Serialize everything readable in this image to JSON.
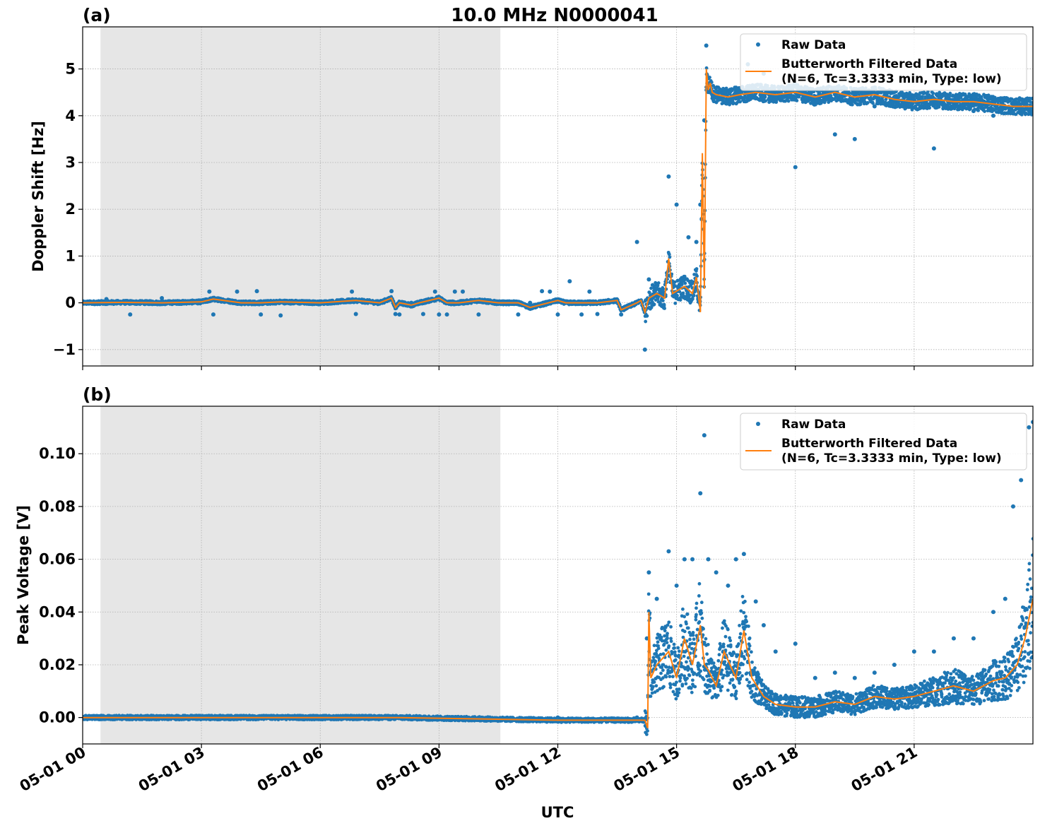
{
  "figure_title": "10.0 MHz N0000041",
  "xlabel": "UTC",
  "x_ticks": [
    "05-01 00",
    "05-01 03",
    "05-01 06",
    "05-01 09",
    "05-01 12",
    "05-01 15",
    "05-01 18",
    "05-01 21"
  ],
  "colors": {
    "raw": "#1f77b4",
    "filtered": "#ff7f0e",
    "night_shade": "#e6e6e6",
    "grid": "#b0b0b0"
  },
  "chart_data": [
    {
      "type": "scatter",
      "panel_label": "(a)",
      "ylabel": "Doppler Shift [Hz]",
      "x_unit": "hours UTC, 2024-05-01",
      "xlim": [
        0,
        24
      ],
      "ylim": [
        -1.35,
        5.9
      ],
      "y_ticks": [
        -1,
        0,
        1,
        2,
        3,
        4,
        5
      ],
      "y_tick_labels": [
        "−1",
        "0",
        "1",
        "2",
        "3",
        "4",
        "5"
      ],
      "shaded_interval": [
        0.45,
        10.55
      ],
      "grid": true,
      "legend_position": "upper right",
      "legend": [
        "Raw Data",
        "Butterworth Filtered Data",
        "(N=6, Tc=3.3333 min, Type: low)"
      ],
      "series": [
        {
          "name": "Raw Data",
          "kind": "points",
          "x": [
            0.2,
            0.6,
            1.2,
            2.0,
            2.4,
            3.2,
            3.3,
            3.9,
            4.4,
            4.5,
            5.0,
            5.8,
            6.8,
            6.9,
            7.8,
            7.9,
            8.0,
            8.3,
            8.6,
            8.9,
            9.0,
            9.2,
            9.4,
            9.6,
            10.0,
            10.2,
            10.6,
            11.0,
            11.3,
            11.6,
            11.8,
            12.0,
            12.3,
            12.6,
            12.8,
            13.0,
            13.3,
            13.6,
            14.0,
            14.2,
            14.3,
            14.5,
            14.8,
            15.0,
            15.3,
            15.5,
            15.6,
            15.7,
            15.75,
            15.8,
            15.9,
            16.2,
            16.5,
            16.8,
            17.2,
            17.5,
            18.0,
            18.5,
            19.0,
            19.5,
            20.0,
            20.5,
            21.0,
            21.5,
            22.0,
            22.5,
            23.0,
            23.5,
            24.0
          ],
          "y": [
            0.0,
            0.08,
            -0.25,
            0.1,
            -0.01,
            0.24,
            -0.25,
            0.24,
            0.25,
            -0.25,
            -0.27,
            0.0,
            0.24,
            -0.24,
            0.25,
            -0.24,
            -0.25,
            0.0,
            -0.24,
            0.24,
            -0.25,
            -0.25,
            0.24,
            0.24,
            -0.25,
            0.0,
            0.0,
            -0.25,
            0.0,
            0.25,
            0.24,
            -0.25,
            0.46,
            -0.25,
            0.24,
            -0.24,
            0.0,
            -0.25,
            1.3,
            -1.0,
            0.5,
            0.3,
            2.7,
            2.1,
            1.4,
            1.3,
            2.1,
            3.9,
            5.5,
            4.8,
            4.5,
            4.5,
            4.6,
            5.1,
            4.9,
            4.4,
            2.9,
            4.4,
            3.6,
            3.5,
            4.2,
            4.4,
            4.3,
            3.3,
            4.2,
            4.1,
            4.0,
            4.1,
            4.1
          ]
        },
        {
          "name": "Butterworth Filtered Data",
          "kind": "line",
          "x": [
            0.0,
            1.0,
            2.0,
            3.0,
            3.3,
            4.0,
            4.5,
            5.0,
            6.0,
            6.9,
            7.5,
            7.8,
            7.9,
            8.0,
            8.3,
            8.5,
            9.0,
            9.2,
            9.5,
            10.0,
            10.5,
            11.0,
            11.3,
            12.0,
            12.2,
            12.7,
            13.0,
            13.5,
            13.6,
            14.0,
            14.1,
            14.2,
            14.3,
            14.5,
            14.7,
            14.8,
            14.9,
            15.2,
            15.4,
            15.5,
            15.6,
            15.65,
            15.7,
            15.75,
            15.8,
            15.85,
            15.9,
            16.0,
            16.3,
            16.6,
            17.0,
            17.5,
            18.0,
            18.5,
            19.0,
            19.5,
            20.0,
            20.5,
            21.0,
            21.5,
            22.0,
            22.5,
            23.0,
            23.5,
            24.0
          ],
          "y": [
            0.0,
            0.01,
            0.0,
            0.02,
            0.08,
            0.0,
            0.0,
            0.02,
            0.0,
            0.05,
            0.0,
            0.1,
            -0.1,
            0.0,
            -0.05,
            0.0,
            0.1,
            0.0,
            0.0,
            0.05,
            0.0,
            0.0,
            -0.1,
            0.05,
            0.0,
            0.0,
            0.0,
            0.05,
            -0.15,
            0.0,
            0.05,
            -0.2,
            0.1,
            0.2,
            0.1,
            0.95,
            0.2,
            0.35,
            0.2,
            0.55,
            -0.2,
            3.2,
            0.3,
            5.0,
            4.55,
            4.7,
            4.5,
            4.45,
            4.4,
            4.45,
            4.5,
            4.45,
            4.5,
            4.4,
            4.5,
            4.4,
            4.45,
            4.35,
            4.3,
            4.35,
            4.3,
            4.3,
            4.25,
            4.2,
            4.2
          ]
        }
      ]
    },
    {
      "type": "scatter",
      "panel_label": "(b)",
      "ylabel": "Peak Voltage [V]",
      "x_unit": "hours UTC, 2024-05-01",
      "xlim": [
        0,
        24
      ],
      "ylim": [
        -0.01,
        0.118
      ],
      "y_ticks": [
        0.0,
        0.02,
        0.04,
        0.06,
        0.08,
        0.1
      ],
      "y_tick_labels": [
        "0.00",
        "0.02",
        "0.04",
        "0.06",
        "0.08",
        "0.10"
      ],
      "shaded_interval": [
        0.45,
        10.55
      ],
      "grid": true,
      "legend_position": "upper right",
      "legend": [
        "Raw Data",
        "Butterworth Filtered Data",
        "(N=6, Tc=3.3333 min, Type: low)"
      ],
      "series": [
        {
          "name": "Raw Data",
          "kind": "points",
          "x": [
            0.0,
            2.0,
            4.0,
            6.0,
            8.0,
            10.0,
            12.0,
            14.0,
            14.25,
            14.3,
            14.5,
            14.8,
            15.0,
            15.2,
            15.4,
            15.6,
            15.7,
            15.8,
            16.0,
            16.3,
            16.5,
            16.7,
            17.0,
            17.2,
            17.5,
            18.0,
            18.5,
            19.0,
            19.5,
            20.0,
            20.5,
            21.0,
            21.5,
            22.0,
            22.5,
            23.0,
            23.3,
            23.5,
            23.7,
            23.9,
            24.0
          ],
          "y": [
            0.0,
            0.0,
            0.0,
            0.0,
            0.0,
            0.0,
            0.0,
            0.0,
            0.03,
            0.055,
            0.045,
            0.063,
            0.05,
            0.06,
            0.06,
            0.085,
            0.107,
            0.06,
            0.055,
            0.05,
            0.06,
            0.062,
            0.044,
            0.035,
            0.025,
            0.028,
            0.015,
            0.017,
            0.015,
            0.017,
            0.02,
            0.025,
            0.025,
            0.03,
            0.03,
            0.04,
            0.045,
            0.08,
            0.09,
            0.11,
            0.112
          ]
        },
        {
          "name": "Butterworth Filtered Data",
          "kind": "line",
          "x": [
            0.0,
            4.0,
            8.0,
            12.0,
            14.2,
            14.27,
            14.3,
            14.35,
            14.5,
            14.8,
            15.0,
            15.2,
            15.4,
            15.6,
            15.7,
            15.8,
            16.0,
            16.2,
            16.5,
            16.7,
            16.9,
            17.2,
            17.5,
            18.0,
            18.5,
            19.0,
            19.5,
            20.0,
            20.5,
            21.0,
            21.5,
            22.0,
            22.5,
            23.0,
            23.3,
            23.6,
            23.8,
            24.0
          ],
          "y": [
            0.0,
            0.0,
            0.0,
            -0.001,
            -0.001,
            -0.004,
            0.04,
            0.015,
            0.02,
            0.025,
            0.015,
            0.03,
            0.02,
            0.035,
            0.02,
            0.018,
            0.012,
            0.025,
            0.015,
            0.033,
            0.015,
            0.008,
            0.005,
            0.004,
            0.004,
            0.006,
            0.005,
            0.008,
            0.007,
            0.008,
            0.01,
            0.012,
            0.01,
            0.014,
            0.015,
            0.02,
            0.03,
            0.045
          ]
        }
      ]
    }
  ]
}
